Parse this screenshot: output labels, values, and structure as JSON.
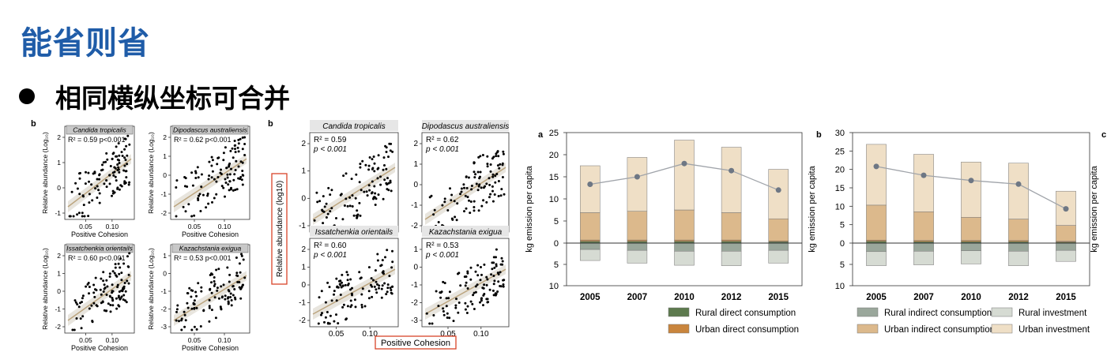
{
  "slide": {
    "title": "能省则省",
    "bullet": "相同横纵坐标可合并"
  },
  "colors": {
    "title": "#1f5ca8",
    "highlight_box": "#d9442a",
    "fit_line": "#bca57f",
    "rural_direct": "#5d7a4e",
    "urban_direct": "#c9853d",
    "rural_indirect": "#9aa79b",
    "urban_indirect": "#dcb98c",
    "rural_investment": "#d6dbd3",
    "urban_investment": "#efdfc6",
    "line": "#a0a4aa",
    "point": "#6e7784"
  },
  "left_figure": {
    "panel_letter": "b",
    "ylabel": "Relative abundance (Log₁₀)",
    "xlabel": "Positive Cohesion",
    "xticks": [
      "0.05",
      "0.10"
    ],
    "panels": [
      {
        "species": "Candida tropicalis",
        "stats": "R² = 0.59  p<0.001",
        "yticks": [
          "2",
          "1",
          "0",
          "-1"
        ]
      },
      {
        "species": "Dipodascus australiensis",
        "stats": "R² = 0.62  p<0.001",
        "yticks": [
          "2",
          "1",
          "0",
          "-1",
          "-2"
        ]
      },
      {
        "species": "Issatchenkia orientails",
        "stats": "R² = 0.60  p<0.001",
        "yticks": [
          "2",
          "1",
          "0",
          "-1",
          "-2"
        ]
      },
      {
        "species": "Kazachstania exigua",
        "stats": "R² = 0.53  p<0.001",
        "yticks": [
          "1",
          "0",
          "-1",
          "-2",
          "-3"
        ]
      }
    ]
  },
  "middle_figure": {
    "panel_letter": "b",
    "ylabel": "Relative abundance (log10)",
    "xlabel": "Positive Cohesion",
    "xticks": [
      "0.05",
      "0.10"
    ],
    "panels": [
      {
        "species": "Candida tropicalis",
        "r2": "R² = 0.59",
        "p": "p < 0.001",
        "yticks": [
          "2",
          "1",
          "0",
          "-1"
        ]
      },
      {
        "species": "Dipodascus australiensis",
        "r2": "R² = 0.62",
        "p": "p < 0.001",
        "yticks": [
          "2",
          "1",
          "0",
          "-1",
          "-2"
        ]
      },
      {
        "species": "Issatchenkia orientails",
        "r2": "R² = 0.60",
        "p": "p < 0.001",
        "yticks": [
          "2",
          "1",
          "0",
          "-1",
          "-2"
        ]
      },
      {
        "species": "Kazachstania exigua",
        "r2": "R² = 0.53",
        "p": "p < 0.001",
        "yticks": [
          "1",
          "0",
          "-1",
          "-2",
          "-3"
        ]
      }
    ]
  },
  "chart_data": [
    {
      "type": "bar",
      "panel_letter": "a",
      "ylabel": "kg emission per capita",
      "categories": [
        "2005",
        "2007",
        "2010",
        "2012",
        "2015"
      ],
      "ylim_up": [
        0,
        25
      ],
      "ylim_down": [
        0,
        10
      ],
      "yticks_up": [
        "25",
        "20",
        "15",
        "10",
        "5",
        "0"
      ],
      "yticks_down": [
        "5",
        "10"
      ],
      "up_series": [
        {
          "name": "Rural direct consumption",
          "values": [
            0.4,
            0.4,
            0.4,
            0.4,
            0.3
          ]
        },
        {
          "name": "Urban direct consumption",
          "values": [
            0.3,
            0.3,
            0.3,
            0.3,
            0.2
          ]
        },
        {
          "name": "Urban indirect consumption",
          "values": [
            6.2,
            6.5,
            6.8,
            6.2,
            5.0
          ]
        },
        {
          "name": "Urban investment",
          "values": [
            10.6,
            12.2,
            15.8,
            14.8,
            11.2
          ]
        }
      ],
      "down_series": [
        {
          "name": "Rural indirect consumption",
          "values": [
            1.5,
            1.7,
            1.9,
            1.9,
            1.7
          ]
        },
        {
          "name": "Rural investment",
          "values": [
            2.6,
            3.0,
            3.3,
            3.4,
            3.0
          ]
        }
      ],
      "line_values": [
        13.3,
        15.0,
        18.0,
        16.4,
        12.0
      ]
    },
    {
      "type": "bar",
      "panel_letter": "b",
      "ylabel": "kg emission per capita",
      "categories": [
        "2005",
        "2007",
        "2010",
        "2012",
        "2015"
      ],
      "ylim_up": [
        0,
        30
      ],
      "ylim_down": [
        0,
        10
      ],
      "yticks_up": [
        "30",
        "25",
        "20",
        "15",
        "10",
        "5",
        "0"
      ],
      "yticks_down": [
        "5",
        "10"
      ],
      "up_series": [
        {
          "name": "Rural direct consumption",
          "values": [
            0.5,
            0.4,
            0.4,
            0.4,
            0.3
          ]
        },
        {
          "name": "Urban direct consumption",
          "values": [
            0.3,
            0.3,
            0.3,
            0.3,
            0.2
          ]
        },
        {
          "name": "Urban indirect consumption",
          "values": [
            9.5,
            7.8,
            6.3,
            5.8,
            4.3
          ]
        },
        {
          "name": "Urban investment",
          "values": [
            16.5,
            15.6,
            15.0,
            15.2,
            9.3
          ]
        }
      ],
      "down_series": [
        {
          "name": "Rural indirect consumption",
          "values": [
            2.0,
            1.9,
            1.8,
            1.9,
            1.7
          ]
        },
        {
          "name": "Rural investment",
          "values": [
            3.3,
            3.2,
            3.1,
            3.4,
            2.6
          ]
        }
      ],
      "line_values": [
        20.8,
        18.4,
        17.0,
        16.0,
        9.3
      ]
    }
  ],
  "right_stub": {
    "panel_letter": "c",
    "ylabel": "kg emission per capita"
  },
  "legend": [
    {
      "label": "Rural direct consumption",
      "color": "#5d7a4e"
    },
    {
      "label": "Rural indirect consumption",
      "color": "#9aa79b"
    },
    {
      "label": "Rural investment",
      "color": "#d6dbd3"
    },
    {
      "label": "Urban direct consumption",
      "color": "#c9853d"
    },
    {
      "label": "Urban indirect consumption",
      "color": "#dcb98c"
    },
    {
      "label": "Urban investment",
      "color": "#efdfc6"
    }
  ]
}
